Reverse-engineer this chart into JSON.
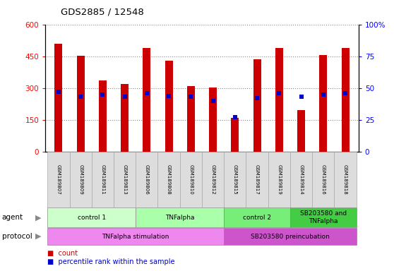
{
  "title": "GDS2885 / 12548",
  "samples": [
    "GSM189807",
    "GSM189809",
    "GSM189811",
    "GSM189813",
    "GSM189806",
    "GSM189808",
    "GSM189810",
    "GSM189812",
    "GSM189815",
    "GSM189817",
    "GSM189819",
    "GSM189814",
    "GSM189816",
    "GSM189818"
  ],
  "count_values": [
    510,
    452,
    337,
    318,
    490,
    430,
    308,
    302,
    160,
    435,
    488,
    197,
    454,
    490
  ],
  "percentile_values": [
    47,
    43,
    45,
    43,
    46,
    44,
    43,
    40,
    27,
    42,
    46,
    43,
    45,
    46
  ],
  "ylim_left": [
    0,
    600
  ],
  "ylim_right": [
    0,
    100
  ],
  "yticks_left": [
    0,
    150,
    300,
    450,
    600
  ],
  "yticks_right": [
    0,
    25,
    50,
    75,
    100
  ],
  "ytick_labels_right": [
    "0",
    "25",
    "50",
    "75",
    "100%"
  ],
  "bar_color": "#cc0000",
  "dot_color": "#0000cc",
  "agent_groups": [
    {
      "label": "control 1",
      "start": 0,
      "end": 4,
      "color": "#ccffcc"
    },
    {
      "label": "TNFalpha",
      "start": 4,
      "end": 8,
      "color": "#aaffaa"
    },
    {
      "label": "control 2",
      "start": 8,
      "end": 11,
      "color": "#77ee77"
    },
    {
      "label": "SB203580 and\nTNFalpha",
      "start": 11,
      "end": 14,
      "color": "#44cc44"
    }
  ],
  "protocol_groups": [
    {
      "label": "TNFalpha stimulation",
      "start": 0,
      "end": 8,
      "color": "#ee88ee"
    },
    {
      "label": "SB203580 preincubation",
      "start": 8,
      "end": 14,
      "color": "#cc55cc"
    }
  ],
  "legend_count_color": "#cc0000",
  "legend_dot_color": "#0000cc",
  "bar_width": 0.35
}
